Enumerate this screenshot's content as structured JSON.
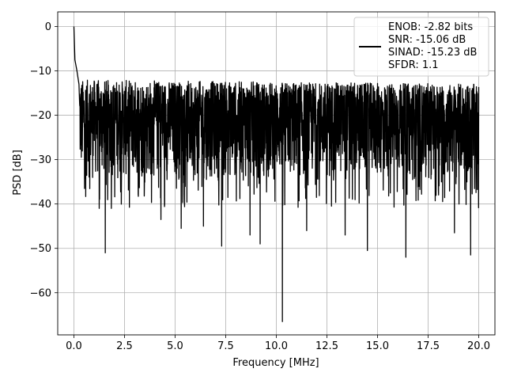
{
  "chart_data": {
    "type": "line",
    "title": "",
    "xlabel": "Frequency [MHz]",
    "ylabel": "PSD [dB]",
    "xlim": [
      -0.8,
      20.8
    ],
    "ylim": [
      -69.5,
      3.3
    ],
    "x_ticks": [
      0.0,
      2.5,
      5.0,
      7.5,
      10.0,
      12.5,
      15.0,
      17.5,
      20.0
    ],
    "x_tick_labels": [
      "0.0",
      "2.5",
      "5.0",
      "7.5",
      "10.0",
      "12.5",
      "15.0",
      "17.5",
      "20.0"
    ],
    "y_ticks": [
      0,
      -10,
      -20,
      -30,
      -40,
      -50,
      -60
    ],
    "y_tick_labels": [
      "0",
      "−10",
      "−20",
      "−30",
      "−40",
      "−50",
      "−60"
    ],
    "grid": true,
    "legend_position": "top-right",
    "series": [
      {
        "name": "ENOB: -2.82 bits\nSNR: -15.06 dB\nSINAD: -15.23 dB\nSFDR: 1.1",
        "color": "#000000",
        "noise": {
          "x_range": [
            0.0,
            20.0
          ],
          "upper_envelope": -12.0,
          "lower_envelope": -35.0,
          "center": -25.0
        },
        "peaks": [
          {
            "x": 0.0,
            "y": 0.0
          },
          {
            "x": 0.05,
            "y": -7.5
          },
          {
            "x": 0.15,
            "y": -10.0
          },
          {
            "x": 0.25,
            "y": -13.0
          }
        ],
        "dips": [
          {
            "x": 0.15,
            "y": -36.0
          },
          {
            "x": 1.25,
            "y": -41.0
          },
          {
            "x": 1.55,
            "y": -51.0
          },
          {
            "x": 1.85,
            "y": -41.0
          },
          {
            "x": 4.3,
            "y": -43.5
          },
          {
            "x": 5.3,
            "y": -45.5
          },
          {
            "x": 6.4,
            "y": -45.0
          },
          {
            "x": 7.3,
            "y": -49.5
          },
          {
            "x": 8.7,
            "y": -47.0
          },
          {
            "x": 9.2,
            "y": -49.0
          },
          {
            "x": 10.3,
            "y": -66.5
          },
          {
            "x": 11.5,
            "y": -46.0
          },
          {
            "x": 13.4,
            "y": -47.0
          },
          {
            "x": 14.5,
            "y": -50.5
          },
          {
            "x": 16.4,
            "y": -52.0
          },
          {
            "x": 18.8,
            "y": -46.5
          },
          {
            "x": 19.6,
            "y": -51.5
          }
        ]
      }
    ]
  }
}
